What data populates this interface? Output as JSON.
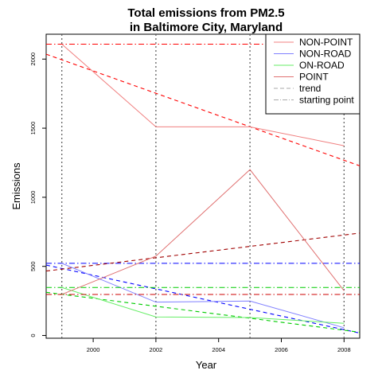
{
  "chart_data": {
    "type": "line",
    "title_lines": [
      "Total emissions from PM2.5",
      "in Baltimore City, Maryland"
    ],
    "xlabel": "Year",
    "ylabel": "Emissions",
    "xlim": [
      1998.5,
      2008.5
    ],
    "ylim": [
      -20,
      2180
    ],
    "x_ticks": [
      2000,
      2002,
      2004,
      2006,
      2008
    ],
    "y_ticks": [
      0,
      500,
      1000,
      1500,
      2000
    ],
    "x": [
      1999,
      2002,
      2005,
      2008
    ],
    "grid": "dotted vertical lines at 1999, 2002, 2005 and 2008",
    "legend_position": "top-right",
    "series": [
      {
        "name": "NON-POINT",
        "color": "#f08080",
        "values": [
          2108,
          1510,
          1510,
          1373
        ],
        "trend": {
          "color": "#ff0000",
          "start": 1995,
          "end": 1268
        },
        "starting_point": {
          "color": "#ff0000",
          "value": 2108
        }
      },
      {
        "name": "NON-ROAD",
        "color": "#8080ff",
        "values": [
          522,
          241,
          249,
          56
        ],
        "trend": {
          "color": "#0000ff",
          "start": 485,
          "end": 42
        },
        "starting_point": {
          "color": "#0000ff",
          "value": 522
        }
      },
      {
        "name": "ON-ROAD",
        "color": "#66ee66",
        "values": [
          347,
          134,
          130,
          88
        ],
        "trend": {
          "color": "#00cc00",
          "start": 298,
          "end": 38
        },
        "starting_point": {
          "color": "#00cc00",
          "value": 347
        }
      },
      {
        "name": "POINT",
        "color": "#e07070",
        "values": [
          297,
          574,
          1200,
          324
        ],
        "trend": {
          "color": "#a00000",
          "start": 480,
          "end": 727
        },
        "starting_point": {
          "color": "#cc0000",
          "value": 297
        }
      }
    ],
    "legend": [
      {
        "label": "NON-POINT",
        "style": "solid",
        "color": "#f08080"
      },
      {
        "label": "NON-ROAD",
        "style": "solid",
        "color": "#8080ff"
      },
      {
        "label": "ON-ROAD",
        "style": "solid",
        "color": "#66ee66"
      },
      {
        "label": "POINT",
        "style": "solid",
        "color": "#e07070"
      },
      {
        "label": "trend",
        "style": "dashed",
        "color": "#aaaaaa"
      },
      {
        "label": "starting point",
        "style": "dashdot",
        "color": "#aaaaaa"
      }
    ]
  }
}
